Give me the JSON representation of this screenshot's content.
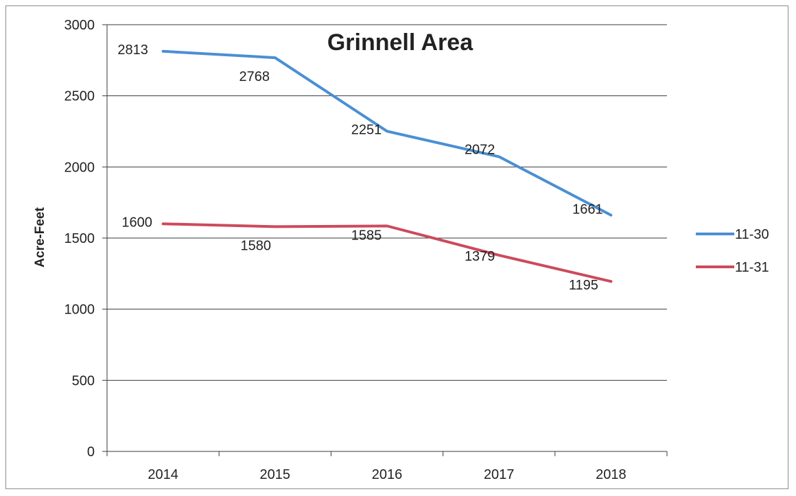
{
  "chart_data": {
    "type": "line",
    "title": "Grinnell Area",
    "xlabel": "",
    "ylabel": "Acre-Feet",
    "categories": [
      "2014",
      "2015",
      "2016",
      "2017",
      "2018"
    ],
    "ylim": [
      0,
      3000
    ],
    "yticks": [
      0,
      500,
      1000,
      1500,
      2000,
      2500,
      3000
    ],
    "grid": true,
    "legend": "right",
    "series": [
      {
        "name": "11-30",
        "color": "#4a8fd4",
        "values": [
          2813,
          2768,
          2251,
          2072,
          1661
        ]
      },
      {
        "name": "11-31",
        "color": "#cc4a5c",
        "values": [
          1600,
          1580,
          1585,
          1379,
          1195
        ]
      }
    ]
  }
}
